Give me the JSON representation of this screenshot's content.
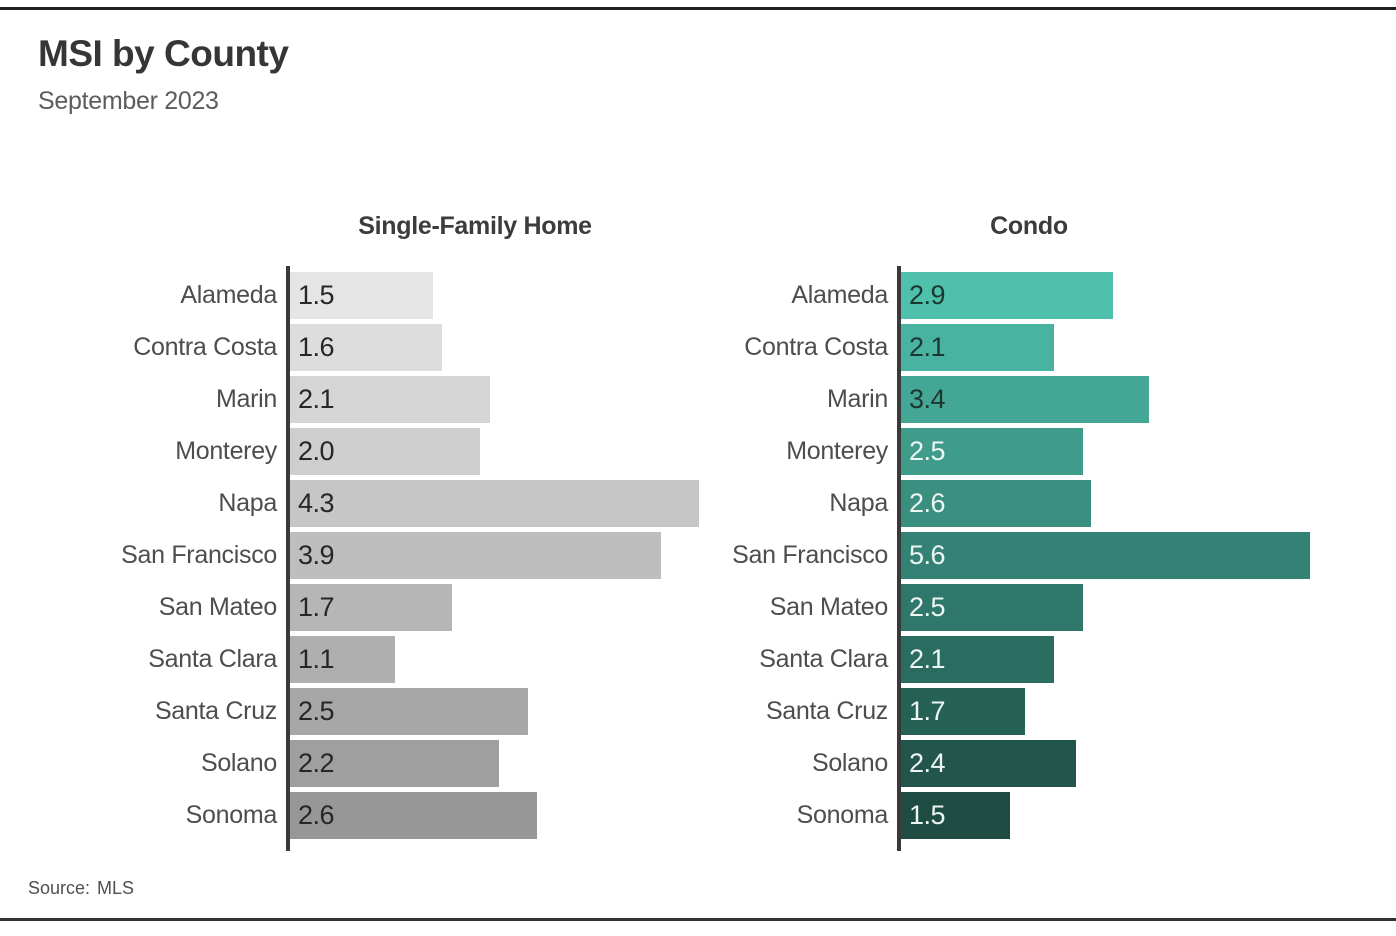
{
  "page": {
    "title": "MSI by County",
    "subtitle": "September 2023"
  },
  "footer": {
    "source_label": "Source:",
    "source_value": "MLS"
  },
  "chart_data": [
    {
      "type": "bar",
      "orientation": "horizontal",
      "title": "Single-Family Home",
      "categories": [
        "Alameda",
        "Contra Costa",
        "Marin",
        "Monterey",
        "Napa",
        "San Francisco",
        "San Mateo",
        "Santa Clara",
        "Santa Cruz",
        "Solano",
        "Sonoma"
      ],
      "values": [
        1.5,
        1.6,
        2.1,
        2.0,
        4.3,
        3.9,
        1.7,
        1.1,
        2.5,
        2.2,
        2.6
      ],
      "xlabel": "",
      "ylabel": "",
      "xlim": [
        0,
        4.4
      ],
      "xmax": 4.4,
      "grid": false,
      "legend": "none",
      "value_labels": "inside-start",
      "bar_colors": [
        "#e5e5e5",
        "#dddddd",
        "#d5d5d5",
        "#cecece",
        "#c6c6c6",
        "#bebebe",
        "#b6b6b6",
        "#afafaf",
        "#a7a7a7",
        "#9f9f9f",
        "#979797"
      ],
      "value_label_colors": [
        "#262626",
        "#262626",
        "#262626",
        "#262626",
        "#262626",
        "#262626",
        "#262626",
        "#262626",
        "#262626",
        "#262626",
        "#262626"
      ]
    },
    {
      "type": "bar",
      "orientation": "horizontal",
      "title": "Condo",
      "categories": [
        "Alameda",
        "Contra Costa",
        "Marin",
        "Monterey",
        "Napa",
        "San Francisco",
        "San Mateo",
        "Santa Clara",
        "Santa Cruz",
        "Solano",
        "Sonoma"
      ],
      "values": [
        2.9,
        2.1,
        3.4,
        2.5,
        2.6,
        5.6,
        2.5,
        2.1,
        1.7,
        2.4,
        1.5
      ],
      "xlabel": "",
      "ylabel": "",
      "xlim": [
        0,
        6.1
      ],
      "xmax": 6.1,
      "grid": false,
      "legend": "none",
      "value_labels": "inside-start",
      "bar_colors": [
        "#4ec0ab",
        "#48b3a0",
        "#44a795",
        "#3f9b8a",
        "#3a8f80",
        "#348275",
        "#2f776b",
        "#2b6c60",
        "#266156",
        "#22564c",
        "#1e4b42"
      ],
      "value_label_colors": [
        "#1c3630",
        "#1c3630",
        "#1c3630",
        "#edf6f3",
        "#edf6f3",
        "#edf6f3",
        "#edf6f3",
        "#edf6f3",
        "#edf6f3",
        "#edf6f3",
        "#edf6f3"
      ]
    }
  ]
}
